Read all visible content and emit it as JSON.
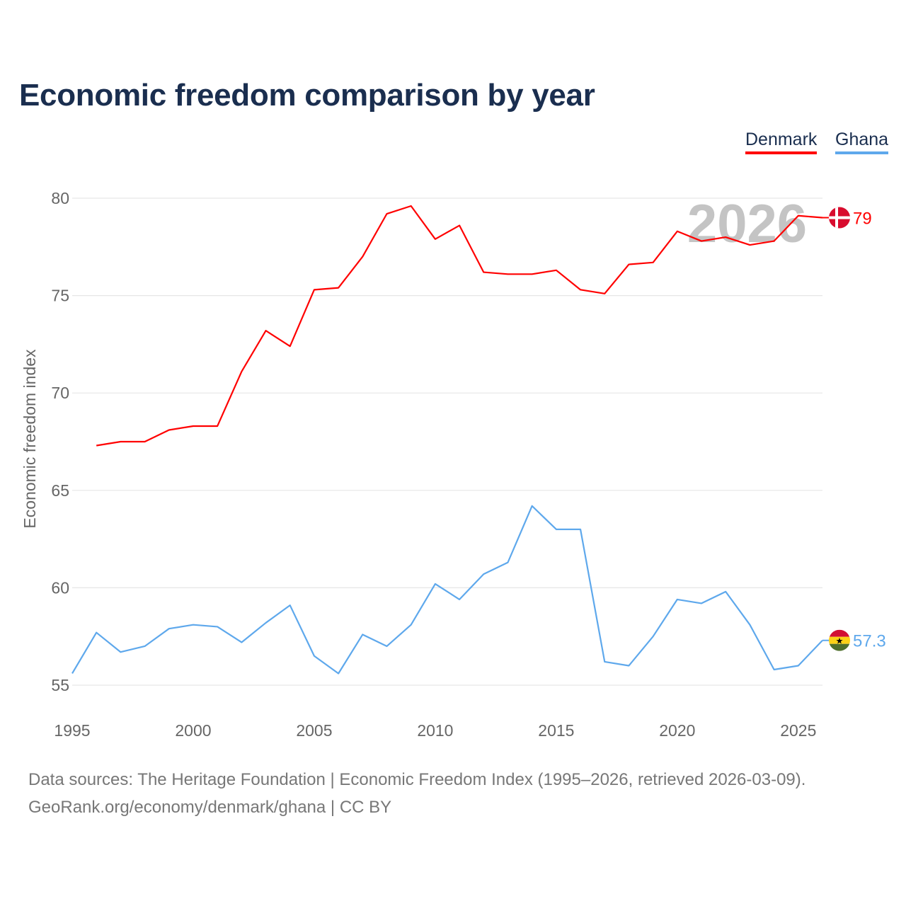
{
  "chart_data": {
    "type": "line",
    "title": "Economic freedom comparison by year",
    "xlabel": "",
    "ylabel": "Economic freedom index",
    "xlim": [
      1995,
      2026
    ],
    "ylim": [
      55,
      80
    ],
    "xticks": [
      1995,
      2000,
      2005,
      2010,
      2015,
      2020,
      2025
    ],
    "yticks": [
      55,
      60,
      65,
      70,
      75,
      80
    ],
    "grid": true,
    "legend_position": "top-right",
    "year_watermark": "2026",
    "series": [
      {
        "name": "Denmark",
        "color": "#ff0000",
        "end_label": "79",
        "x": [
          1996,
          1997,
          1998,
          1999,
          2000,
          2001,
          2002,
          2003,
          2004,
          2005,
          2006,
          2007,
          2008,
          2009,
          2010,
          2011,
          2012,
          2013,
          2014,
          2015,
          2016,
          2017,
          2018,
          2019,
          2020,
          2021,
          2022,
          2023,
          2024,
          2025,
          2026
        ],
        "values": [
          67.3,
          67.5,
          67.5,
          68.1,
          68.3,
          68.3,
          71.1,
          73.2,
          72.4,
          75.3,
          75.4,
          77.0,
          79.2,
          79.6,
          77.9,
          78.6,
          76.2,
          76.1,
          76.1,
          76.3,
          75.3,
          75.1,
          76.6,
          76.7,
          78.3,
          77.8,
          78.0,
          77.6,
          77.8,
          79.1,
          79.0
        ]
      },
      {
        "name": "Ghana",
        "color": "#5ea8ec",
        "end_label": "57.3",
        "x": [
          1995,
          1996,
          1997,
          1998,
          1999,
          2000,
          2001,
          2002,
          2003,
          2004,
          2005,
          2006,
          2007,
          2008,
          2009,
          2010,
          2011,
          2012,
          2013,
          2014,
          2015,
          2016,
          2017,
          2018,
          2019,
          2020,
          2021,
          2022,
          2023,
          2024,
          2025,
          2026
        ],
        "values": [
          55.6,
          57.7,
          56.7,
          57.0,
          57.9,
          58.1,
          58.0,
          57.2,
          58.2,
          59.1,
          56.5,
          55.6,
          57.6,
          57.0,
          58.1,
          60.2,
          59.4,
          60.7,
          61.3,
          64.2,
          63.0,
          63.0,
          56.2,
          56.0,
          57.5,
          59.4,
          59.2,
          59.8,
          58.1,
          55.8,
          56.0,
          57.3
        ]
      }
    ]
  },
  "footer": {
    "line1": "Data sources: The Heritage Foundation | Economic Freedom Index (1995–2026, retrieved 2026-03-09).",
    "line2": "GeoRank.org/economy/denmark/ghana | CC BY"
  }
}
